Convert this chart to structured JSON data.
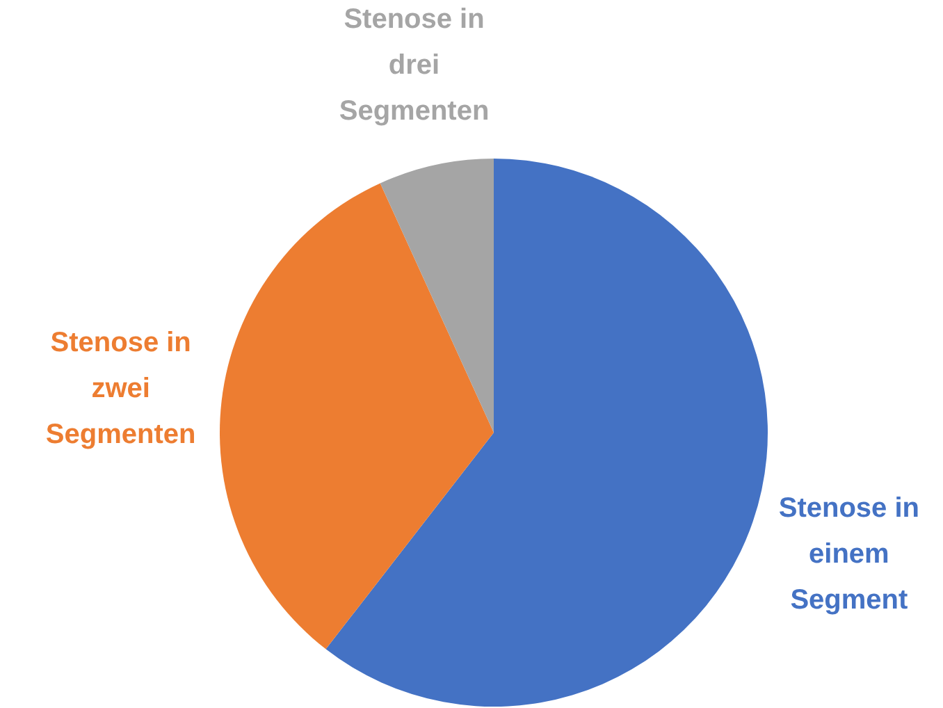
{
  "chart_data": {
    "type": "pie",
    "categories": [
      "Stenose in einem Segment",
      "Stenose in zwei Segmenten",
      "Stenose in drei Segmenten"
    ],
    "values": [
      60.5,
      32.7,
      6.8
    ],
    "colors": [
      "#4472c4",
      "#ed7d31",
      "#a5a5a5"
    ]
  }
}
